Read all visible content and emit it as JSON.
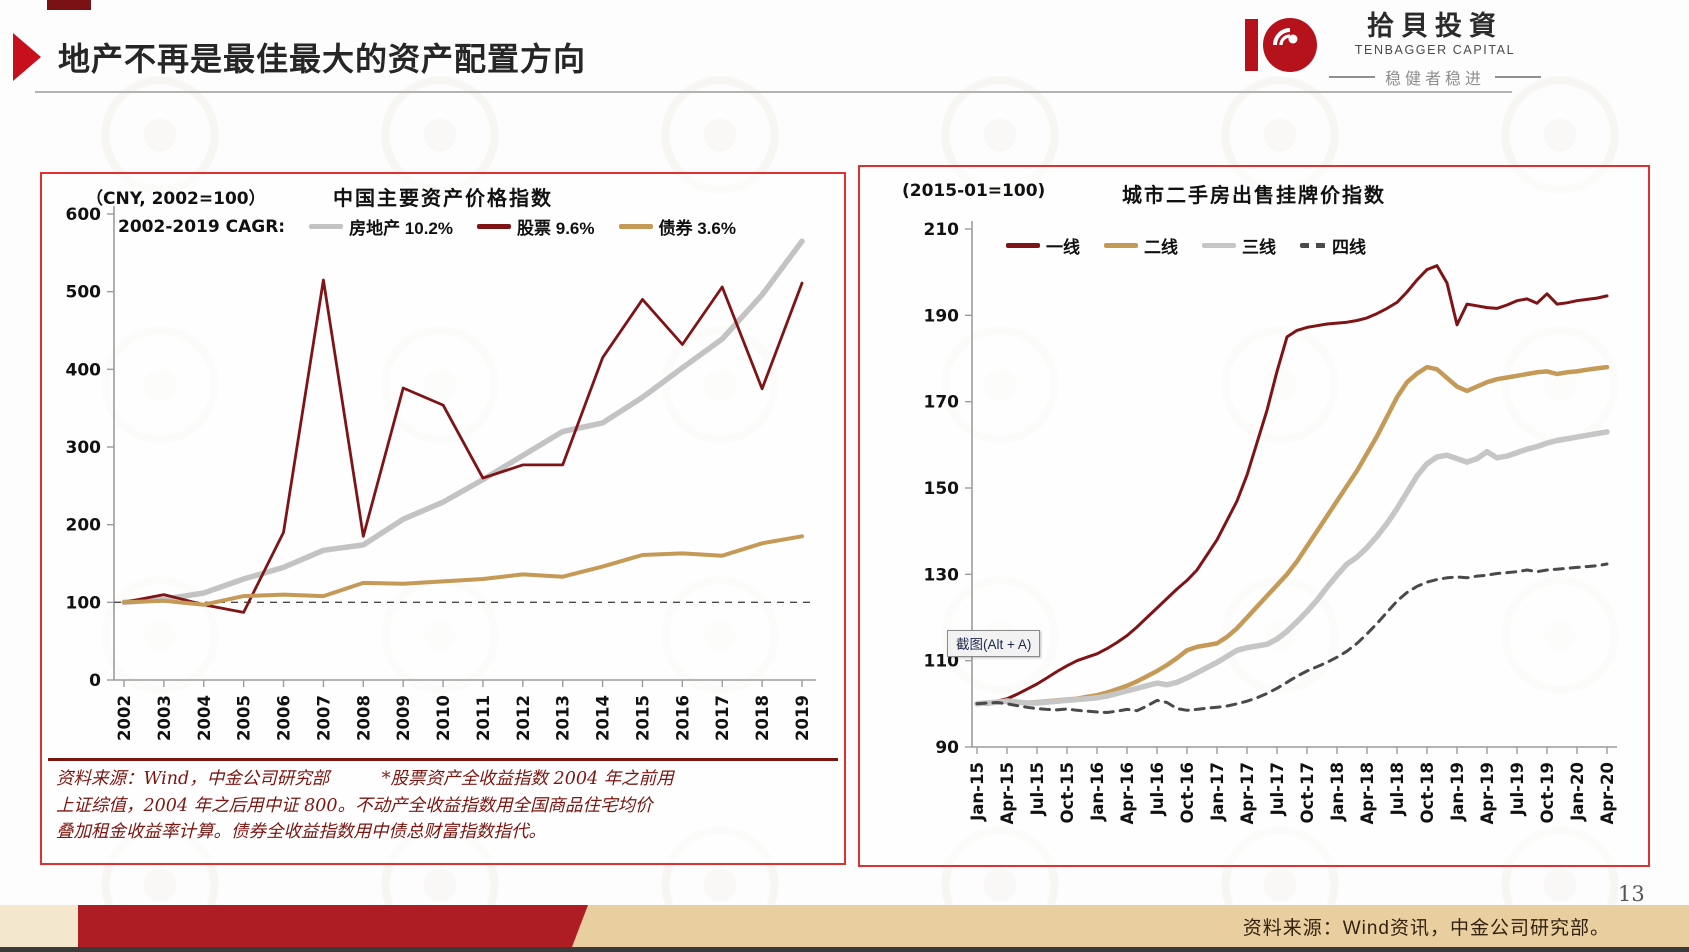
{
  "page": {
    "title": "地产不再是最佳最大的资产配置方向",
    "page_number": "13"
  },
  "brand": {
    "name_cn": "拾貝投資",
    "name_en": "TENBAGGER CAPITAL",
    "tagline": "稳健者稳进",
    "brand_red": "#b5121b"
  },
  "screenshot_badge": {
    "label": "截图(Alt + A)"
  },
  "footer": {
    "source": "资料来源：Wind资讯，中金公司研究部。"
  },
  "chart_data": [
    {
      "type": "line",
      "title": "中国主要资产价格指数",
      "unit_label": "（CNY, 2002=100）",
      "legend_prefix": "2002-2019 CAGR:",
      "legend_position": "top-left-inside",
      "grid": false,
      "baseline_dashed_at": 100,
      "ylim": [
        0,
        600
      ],
      "yticks": [
        0,
        100,
        200,
        300,
        400,
        500,
        600
      ],
      "categories": [
        "2002",
        "2003",
        "2004",
        "2005",
        "2006",
        "2007",
        "2008",
        "2009",
        "2010",
        "2011",
        "2012",
        "2013",
        "2014",
        "2015",
        "2016",
        "2017",
        "2018",
        "2019"
      ],
      "series": [
        {
          "name": "房地产 10.2%",
          "color": "#c3c3c3",
          "width": 5.5,
          "values": [
            100,
            104,
            112,
            130,
            145,
            167,
            174,
            207,
            229,
            258,
            289,
            320,
            331,
            364,
            402,
            439,
            496,
            565
          ]
        },
        {
          "name": "股票 9.6%",
          "color": "#7f1416",
          "width": 2.8,
          "values": [
            100,
            110,
            97,
            87,
            190,
            515,
            185,
            376,
            354,
            260,
            277,
            277,
            415,
            490,
            432,
            506,
            375,
            511
          ]
        },
        {
          "name": "债券 3.6%",
          "color": "#c49a56",
          "width": 4,
          "values": [
            100,
            102,
            97,
            108,
            110,
            108,
            125,
            124,
            127,
            130,
            136,
            133,
            146,
            161,
            163,
            160,
            176,
            185
          ]
        }
      ],
      "footnote_lines": [
        "资料来源：Wind，中金公司研究部　　　*股票资产全收益指数 2004 年之前用",
        "上证综值，2004 年之后用中证 800。不动产全收益指数用全国商品住宅均价",
        "叠加租金收益率计算。债券全收益指数用中债总财富指数指代。"
      ]
    },
    {
      "type": "line",
      "title": "城市二手房出售挂牌价指数",
      "unit_label": "(2015-01=100)",
      "legend_position": "top-left-inside",
      "grid": false,
      "ylim": [
        90,
        210
      ],
      "yticks": [
        90,
        110,
        130,
        150,
        170,
        190,
        210
      ],
      "x_tick_labels": [
        "Jan-15",
        "Apr-15",
        "Jul-15",
        "Oct-15",
        "Jan-16",
        "Apr-16",
        "Jul-16",
        "Oct-16",
        "Jan-17",
        "Apr-17",
        "Jul-17",
        "Oct-17",
        "Jan-18",
        "Apr-18",
        "Jul-18",
        "Oct-18",
        "Jan-19",
        "Apr-19",
        "Jul-19",
        "Oct-19",
        "Jan-20",
        "Apr-20"
      ],
      "x_tick_every_months": 3,
      "series": [
        {
          "name": "一线",
          "color": "#7f1416",
          "width": 3,
          "values": [
            100,
            100.2,
            100.6,
            101.2,
            102.2,
            103.4,
            104.6,
            106,
            107.5,
            108.8,
            110,
            110.8,
            111.6,
            112.8,
            114.2,
            115.8,
            117.8,
            120,
            122.2,
            124.4,
            126.6,
            128.6,
            131,
            134.5,
            138,
            142.5,
            147,
            153,
            160.5,
            168,
            177,
            185,
            186.5,
            187.2,
            187.6,
            188,
            188.2,
            188.4,
            188.8,
            189.4,
            190.4,
            191.6,
            193,
            195.4,
            198.2,
            200.6,
            201.5,
            197.5,
            187.8,
            192.6,
            192.2,
            191.8,
            191.6,
            192.4,
            193.4,
            193.8,
            192.8,
            195,
            192.6,
            192.9,
            193.4,
            193.7,
            194,
            194.5
          ]
        },
        {
          "name": "二线",
          "color": "#c49a56",
          "width": 4.5,
          "values": [
            100,
            100,
            100.3,
            100.8,
            100.5,
            100.2,
            100.4,
            100.6,
            100.8,
            101,
            101.2,
            101.6,
            102,
            102.6,
            103.4,
            104.2,
            105.2,
            106.4,
            107.6,
            109,
            110.6,
            112.4,
            113.2,
            113.6,
            114,
            115.5,
            117.5,
            120,
            122.5,
            125,
            127.5,
            130,
            133,
            136.5,
            140,
            143.5,
            147,
            150.5,
            154,
            158,
            162,
            166.5,
            171,
            174.5,
            176.5,
            178,
            177.5,
            175.5,
            173.5,
            172.5,
            173.5,
            174.5,
            175.2,
            175.6,
            176,
            176.4,
            176.8,
            177,
            176.4,
            176.8,
            177,
            177.4,
            177.7,
            178
          ]
        },
        {
          "name": "三线",
          "color": "#c6c6c6",
          "width": 5.5,
          "values": [
            100,
            100.2,
            100.4,
            100.6,
            100.4,
            100.2,
            100.2,
            100.4,
            100.6,
            100.8,
            101,
            101.2,
            101.4,
            101.8,
            102.4,
            103,
            103.6,
            104.2,
            104.8,
            104.4,
            105,
            106,
            107.2,
            108.4,
            109.6,
            111,
            112.4,
            113,
            113.4,
            113.8,
            115,
            116.8,
            119,
            121.4,
            124,
            127,
            129.8,
            132.4,
            134,
            136.2,
            138.8,
            141.8,
            145.2,
            149,
            152.8,
            155.6,
            157.2,
            157.6,
            156.8,
            156,
            156.8,
            158.4,
            157,
            157.4,
            158.2,
            159,
            159.6,
            160.4,
            161,
            161.4,
            161.8,
            162.2,
            162.6,
            163
          ]
        },
        {
          "name": "四线",
          "color": "#4a4a4a",
          "width": 3,
          "dash": "9,7",
          "values": [
            100,
            100.2,
            100.3,
            100,
            99.6,
            99.2,
            98.9,
            98.7,
            98.6,
            98.8,
            98.5,
            98.3,
            98.1,
            98,
            98.3,
            98.7,
            98.4,
            99.5,
            100.8,
            100.3,
            98.9,
            98.5,
            98.7,
            99,
            99.2,
            99.5,
            100,
            100.6,
            101.4,
            102.4,
            103.6,
            105,
            106.4,
            107.6,
            108.6,
            109.6,
            110.8,
            112.2,
            114,
            116.2,
            118.6,
            121.2,
            123.8,
            125.8,
            127.2,
            128.2,
            128.8,
            129.2,
            129.4,
            129.2,
            129.6,
            129.8,
            130.2,
            130.4,
            130.6,
            131,
            130.6,
            131,
            131.2,
            131.4,
            131.6,
            131.8,
            132,
            132.4
          ]
        }
      ]
    }
  ]
}
